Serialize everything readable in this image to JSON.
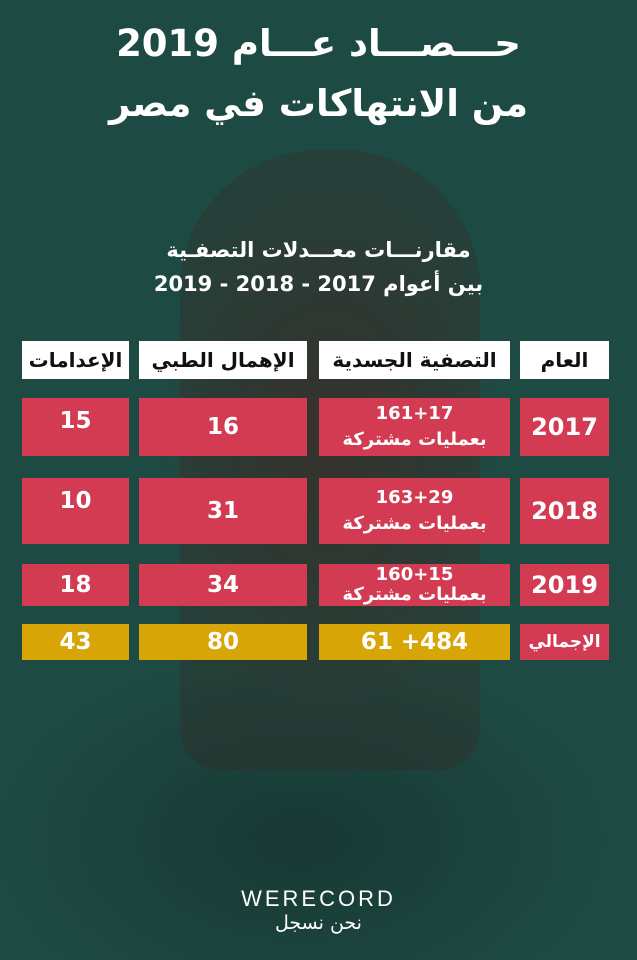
{
  "title": {
    "line1": "حـــصـــاد عـــام 2019",
    "line2": "من الانتهاكات في مصر"
  },
  "subtitle": {
    "line1": "مقارنـــات معـــدلات التصفـية",
    "line2": "بين أعوام 2017 - 2018 - 2019"
  },
  "table": {
    "headers": {
      "year": "العام",
      "physical_liquidation": "التصفية الجسدية",
      "medical_negligence": "الإهمال الطبي",
      "executions": "الإعدامات"
    },
    "rows": [
      {
        "year": "2017",
        "physical_main": "161+17",
        "physical_note": "بعمليات مشتركة",
        "medical": "16",
        "executions": "15"
      },
      {
        "year": "2018",
        "physical_main": "163+29",
        "physical_note": "بعمليات مشتركة",
        "medical": "31",
        "executions": "10"
      },
      {
        "year": "2019",
        "physical_main": "160+15",
        "physical_note": "بعمليات مشتركة",
        "medical": "34",
        "executions": "18"
      }
    ],
    "total": {
      "label": "الإجمالي",
      "physical": "484+ 61",
      "medical": "80",
      "executions": "43"
    }
  },
  "colors": {
    "row": "#d23b52",
    "total": "#d7a506",
    "background": "#1e4a44"
  },
  "logo": {
    "name": "WERECORD",
    "tagline": "نحن نسجل"
  }
}
